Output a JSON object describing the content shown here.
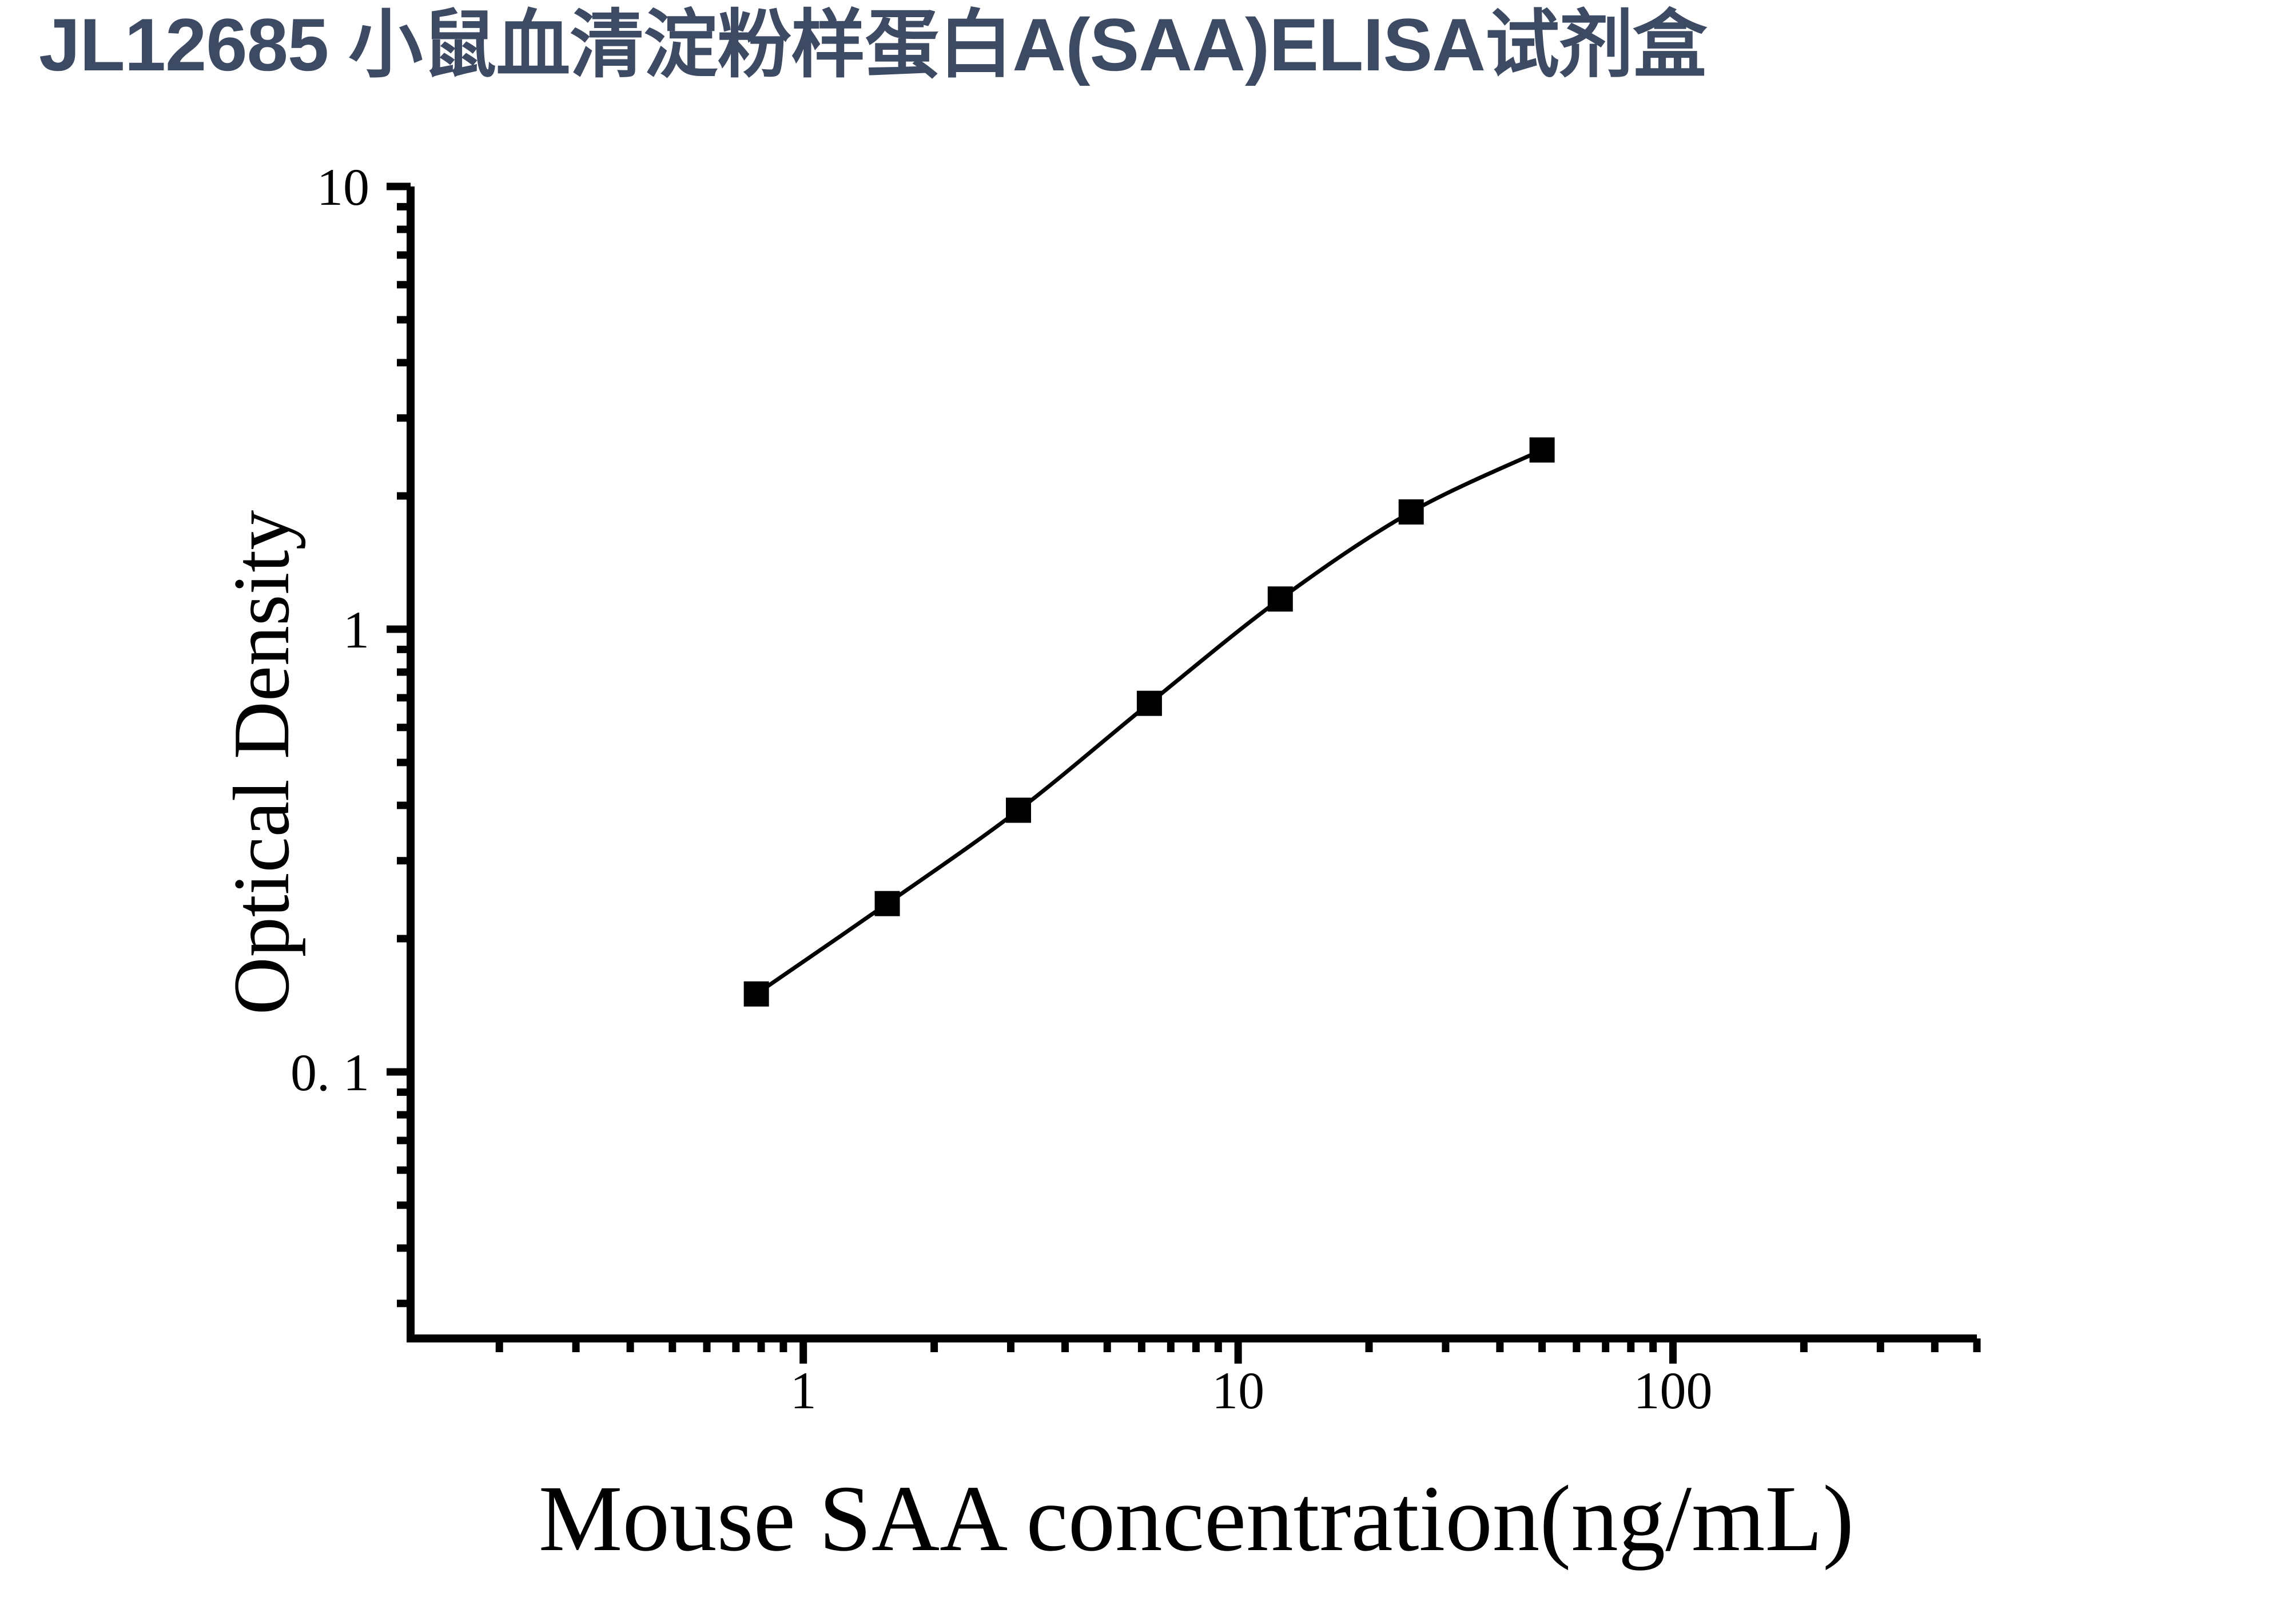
{
  "title": "JL12685 小鼠血清淀粉样蛋白A(SAA)ELISA试剂盒",
  "title_color": "#3d4a63",
  "chart_data": {
    "type": "line",
    "title": "JL12685 小鼠血清淀粉样蛋白A(SAA)ELISA试剂盒",
    "xlabel": "Mouse SAA concentration(ng/mL)",
    "ylabel": "Optical Density",
    "x_scale": "log",
    "y_scale": "log",
    "grid": false,
    "legend": "none",
    "x_range": [
      0.125,
      500
    ],
    "y_range": [
      0.025,
      10
    ],
    "x_ticks_major": [
      1,
      10,
      100
    ],
    "x_tick_labels": [
      "1",
      "10",
      "100"
    ],
    "y_ticks_major": [
      10,
      1,
      0.1
    ],
    "y_tick_labels": [
      "10",
      "1",
      "0. 1"
    ],
    "series": [
      {
        "x": [
          0.78,
          1.56,
          3.125,
          6.25,
          12.5,
          25,
          50
        ],
        "y": [
          0.15,
          0.24,
          0.39,
          0.68,
          1.17,
          1.84,
          2.54
        ],
        "marker": "filled-square",
        "color": "#000000"
      }
    ]
  }
}
